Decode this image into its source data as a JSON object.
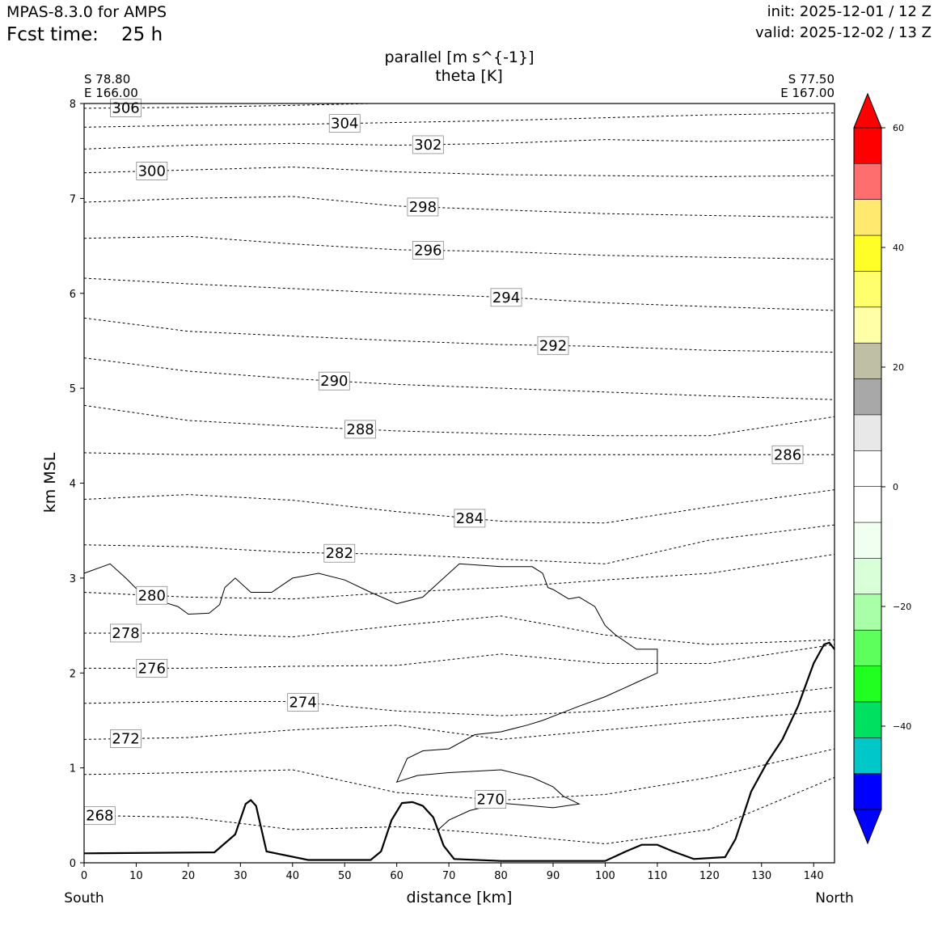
{
  "header": {
    "model": "MPAS-8.3.0 for AMPS",
    "fcst_label": "Fcst time:",
    "fcst_value": "25 h",
    "init": "init: 2025-12-01 / 12 Z",
    "valid": "valid: 2025-12-02 / 13 Z"
  },
  "corners": {
    "left_lat": "S 78.80",
    "left_lon": "E 166.00",
    "right_lat": "S 77.50",
    "right_lon": "E 167.00",
    "left_dir": "South",
    "right_dir": "North"
  },
  "chart_data": {
    "type": "cross-section contour",
    "title_line1": "parallel [m s^{-1}]",
    "title_line2": "theta [K]",
    "xlabel": "distance [km]",
    "ylabel": "km MSL",
    "xlim": [
      0,
      144
    ],
    "ylim": [
      0,
      8
    ],
    "xticks": [
      0,
      10,
      20,
      30,
      40,
      50,
      60,
      70,
      80,
      90,
      100,
      110,
      120,
      130,
      140
    ],
    "yticks": [
      0,
      1,
      2,
      3,
      4,
      5,
      6,
      7,
      8
    ],
    "terrain": [
      [
        0,
        0.1
      ],
      [
        25,
        0.11
      ],
      [
        29,
        0.3
      ],
      [
        31,
        0.62
      ],
      [
        32,
        0.66
      ],
      [
        33,
        0.6
      ],
      [
        35,
        0.12
      ],
      [
        43,
        0.03
      ],
      [
        55,
        0.03
      ],
      [
        57,
        0.12
      ],
      [
        59,
        0.45
      ],
      [
        61,
        0.63
      ],
      [
        63,
        0.64
      ],
      [
        65,
        0.6
      ],
      [
        67,
        0.48
      ],
      [
        69,
        0.18
      ],
      [
        71,
        0.04
      ],
      [
        80,
        0.02
      ],
      [
        100,
        0.02
      ],
      [
        104,
        0.12
      ],
      [
        107,
        0.19
      ],
      [
        110,
        0.19
      ],
      [
        113,
        0.12
      ],
      [
        117,
        0.04
      ],
      [
        123,
        0.06
      ],
      [
        125,
        0.25
      ],
      [
        128,
        0.75
      ],
      [
        131,
        1.05
      ],
      [
        134,
        1.3
      ],
      [
        137,
        1.65
      ],
      [
        140,
        2.1
      ],
      [
        142,
        2.3
      ],
      [
        143,
        2.32
      ],
      [
        144,
        2.25
      ]
    ],
    "theta_contours": [
      {
        "level": 306,
        "points": [
          [
            0,
            7.95
          ],
          [
            20,
            7.96
          ],
          [
            40,
            7.98
          ],
          [
            55,
            8.0
          ]
        ]
      },
      {
        "level": 304,
        "points": [
          [
            0,
            7.75
          ],
          [
            20,
            7.77
          ],
          [
            40,
            7.78
          ],
          [
            60,
            7.8
          ],
          [
            80,
            7.82
          ],
          [
            100,
            7.85
          ],
          [
            120,
            7.88
          ],
          [
            144,
            7.9
          ]
        ]
      },
      {
        "level": 302,
        "points": [
          [
            0,
            7.52
          ],
          [
            20,
            7.56
          ],
          [
            40,
            7.58
          ],
          [
            60,
            7.56
          ],
          [
            80,
            7.58
          ],
          [
            100,
            7.62
          ],
          [
            120,
            7.6
          ],
          [
            144,
            7.62
          ]
        ]
      },
      {
        "level": 300,
        "points": [
          [
            0,
            7.27
          ],
          [
            20,
            7.3
          ],
          [
            40,
            7.33
          ],
          [
            60,
            7.28
          ],
          [
            80,
            7.25
          ],
          [
            100,
            7.24
          ],
          [
            120,
            7.23
          ],
          [
            144,
            7.24
          ]
        ]
      },
      {
        "level": 298,
        "points": [
          [
            0,
            6.96
          ],
          [
            20,
            7.0
          ],
          [
            40,
            7.02
          ],
          [
            60,
            6.92
          ],
          [
            80,
            6.88
          ],
          [
            100,
            6.84
          ],
          [
            120,
            6.82
          ],
          [
            144,
            6.8
          ]
        ]
      },
      {
        "level": 296,
        "points": [
          [
            0,
            6.58
          ],
          [
            20,
            6.6
          ],
          [
            40,
            6.52
          ],
          [
            60,
            6.46
          ],
          [
            80,
            6.44
          ],
          [
            100,
            6.4
          ],
          [
            120,
            6.38
          ],
          [
            144,
            6.36
          ]
        ]
      },
      {
        "level": 294,
        "points": [
          [
            0,
            6.16
          ],
          [
            20,
            6.1
          ],
          [
            40,
            6.05
          ],
          [
            60,
            6.0
          ],
          [
            80,
            5.96
          ],
          [
            100,
            5.9
          ],
          [
            120,
            5.86
          ],
          [
            144,
            5.82
          ]
        ]
      },
      {
        "level": 292,
        "points": [
          [
            0,
            5.74
          ],
          [
            20,
            5.6
          ],
          [
            40,
            5.55
          ],
          [
            60,
            5.5
          ],
          [
            80,
            5.46
          ],
          [
            100,
            5.44
          ],
          [
            120,
            5.4
          ],
          [
            144,
            5.38
          ]
        ]
      },
      {
        "level": 290,
        "points": [
          [
            0,
            5.32
          ],
          [
            20,
            5.18
          ],
          [
            40,
            5.1
          ],
          [
            60,
            5.04
          ],
          [
            80,
            5.0
          ],
          [
            100,
            4.96
          ],
          [
            120,
            4.92
          ],
          [
            144,
            4.88
          ]
        ]
      },
      {
        "level": 288,
        "points": [
          [
            0,
            4.82
          ],
          [
            20,
            4.66
          ],
          [
            40,
            4.6
          ],
          [
            60,
            4.55
          ],
          [
            80,
            4.52
          ],
          [
            100,
            4.5
          ],
          [
            120,
            4.5
          ],
          [
            144,
            4.7
          ]
        ]
      },
      {
        "level": 286,
        "points": [
          [
            0,
            4.32
          ],
          [
            20,
            4.3
          ],
          [
            40,
            4.3
          ],
          [
            60,
            4.3
          ],
          [
            80,
            4.3
          ],
          [
            100,
            4.3
          ],
          [
            120,
            4.3
          ],
          [
            144,
            4.3
          ]
        ]
      },
      {
        "level": 284,
        "points": [
          [
            0,
            3.83
          ],
          [
            20,
            3.88
          ],
          [
            40,
            3.82
          ],
          [
            60,
            3.7
          ],
          [
            80,
            3.6
          ],
          [
            100,
            3.58
          ],
          [
            120,
            3.75
          ],
          [
            144,
            3.93
          ]
        ]
      },
      {
        "level": 282,
        "points": [
          [
            0,
            3.35
          ],
          [
            20,
            3.33
          ],
          [
            40,
            3.27
          ],
          [
            60,
            3.25
          ],
          [
            80,
            3.2
          ],
          [
            100,
            3.15
          ],
          [
            120,
            3.4
          ],
          [
            144,
            3.56
          ]
        ]
      },
      {
        "level": 280,
        "points": [
          [
            0,
            2.85
          ],
          [
            20,
            2.8
          ],
          [
            40,
            2.78
          ],
          [
            60,
            2.85
          ],
          [
            80,
            2.9
          ],
          [
            100,
            2.98
          ],
          [
            120,
            3.05
          ],
          [
            144,
            3.25
          ]
        ]
      },
      {
        "level": 278,
        "points": [
          [
            0,
            2.42
          ],
          [
            20,
            2.42
          ],
          [
            40,
            2.38
          ],
          [
            60,
            2.5
          ],
          [
            80,
            2.6
          ],
          [
            100,
            2.4
          ],
          [
            120,
            2.3
          ],
          [
            144,
            2.35
          ]
        ]
      },
      {
        "level": 276,
        "points": [
          [
            0,
            2.05
          ],
          [
            20,
            2.05
          ],
          [
            40,
            2.07
          ],
          [
            60,
            2.08
          ],
          [
            80,
            2.2
          ],
          [
            100,
            2.1
          ],
          [
            120,
            2.1
          ],
          [
            144,
            2.3
          ]
        ]
      },
      {
        "level": 274,
        "points": [
          [
            0,
            1.68
          ],
          [
            20,
            1.7
          ],
          [
            40,
            1.7
          ],
          [
            60,
            1.6
          ],
          [
            80,
            1.55
          ],
          [
            100,
            1.6
          ],
          [
            120,
            1.7
          ],
          [
            144,
            1.85
          ]
        ]
      },
      {
        "level": 272,
        "points": [
          [
            0,
            1.3
          ],
          [
            20,
            1.32
          ],
          [
            40,
            1.4
          ],
          [
            60,
            1.45
          ],
          [
            80,
            1.3
          ],
          [
            100,
            1.4
          ],
          [
            120,
            1.5
          ],
          [
            144,
            1.6
          ]
        ]
      },
      {
        "level": 270,
        "points": [
          [
            0,
            0.93
          ],
          [
            20,
            0.95
          ],
          [
            40,
            0.98
          ],
          [
            60,
            0.74
          ],
          [
            80,
            0.66
          ],
          [
            100,
            0.72
          ],
          [
            120,
            0.9
          ],
          [
            144,
            1.2
          ]
        ]
      },
      {
        "level": 268,
        "points": [
          [
            0,
            0.5
          ],
          [
            20,
            0.48
          ],
          [
            40,
            0.35
          ],
          [
            60,
            0.38
          ],
          [
            80,
            0.3
          ],
          [
            100,
            0.2
          ],
          [
            120,
            0.35
          ],
          [
            144,
            0.9
          ]
        ]
      }
    ],
    "wind_contours": [
      {
        "level": 0,
        "points": [
          [
            0,
            3.05
          ],
          [
            5,
            3.15
          ],
          [
            8,
            3.0
          ],
          [
            12,
            2.78
          ],
          [
            15,
            2.75
          ],
          [
            18,
            2.7
          ],
          [
            20,
            2.62
          ],
          [
            24,
            2.63
          ],
          [
            26,
            2.72
          ],
          [
            27,
            2.9
          ],
          [
            29,
            3.0
          ],
          [
            32,
            2.85
          ],
          [
            36,
            2.85
          ],
          [
            40,
            3.0
          ],
          [
            45,
            3.05
          ],
          [
            50,
            2.98
          ],
          [
            55,
            2.85
          ],
          [
            60,
            2.73
          ],
          [
            65,
            2.8
          ],
          [
            68,
            2.95
          ],
          [
            72,
            3.15
          ],
          [
            80,
            3.12
          ],
          [
            86,
            3.12
          ],
          [
            88,
            3.05
          ],
          [
            89,
            2.9
          ],
          [
            90,
            2.88
          ],
          [
            93,
            2.78
          ],
          [
            95,
            2.8
          ],
          [
            98,
            2.7
          ],
          [
            100,
            2.5
          ],
          [
            102,
            2.4
          ],
          [
            106,
            2.25
          ],
          [
            110,
            2.25
          ],
          [
            110,
            2.0
          ],
          [
            106,
            1.9
          ],
          [
            104,
            1.85
          ],
          [
            100,
            1.75
          ],
          [
            95,
            1.65
          ],
          [
            88,
            1.5
          ],
          [
            85,
            1.45
          ],
          [
            80,
            1.38
          ],
          [
            75,
            1.35
          ],
          [
            70,
            1.2
          ],
          [
            65,
            1.18
          ],
          [
            62,
            1.1
          ],
          [
            60,
            0.85
          ],
          [
            64,
            0.92
          ],
          [
            70,
            0.95
          ],
          [
            80,
            0.98
          ],
          [
            86,
            0.9
          ],
          [
            90,
            0.8
          ],
          [
            92,
            0.7
          ],
          [
            95,
            0.62
          ],
          [
            90,
            0.58
          ],
          [
            80,
            0.63
          ],
          [
            74,
            0.55
          ],
          [
            70,
            0.45
          ],
          [
            68,
            0.35
          ]
        ]
      }
    ],
    "colorbar": {
      "ticks": [
        60,
        40,
        20,
        0,
        -20,
        -40
      ],
      "colors": [
        "#ff0000",
        "#ff6e6e",
        "#ffe96e",
        "#ffff27",
        "#ffff6e",
        "#ffffa8",
        "#bfbfa6",
        "#a8a8a8",
        "#e8e8e8",
        "#ffffff",
        "#ffffff",
        "#f0fff0",
        "#d8ffd8",
        "#a8ffa8",
        "#5cff5c",
        "#20ff20",
        "#00e060",
        "#00c8c8",
        "#0000ff"
      ],
      "extend_top_color": "#ff0000",
      "extend_bottom_color": "#0000ff"
    }
  }
}
